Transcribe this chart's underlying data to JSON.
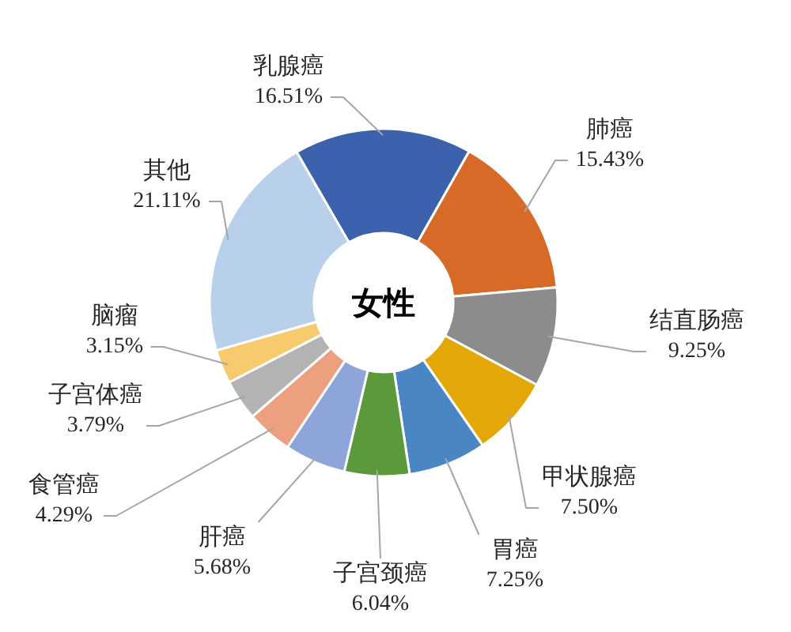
{
  "chart_data": {
    "type": "donut",
    "title": "女性",
    "categories": [
      "乳腺癌",
      "肺癌",
      "结直肠癌",
      "甲状腺癌",
      "胃癌",
      "子宫颈癌",
      "肝癌",
      "食管癌",
      "子宫体癌",
      "脑瘤",
      "其他"
    ],
    "values": [
      16.51,
      15.43,
      9.25,
      7.5,
      7.25,
      6.04,
      5.68,
      4.29,
      3.79,
      3.15,
      21.11
    ],
    "colors": [
      "#3d62ad",
      "#d86a28",
      "#8c8c8c",
      "#e3a808",
      "#4a85c4",
      "#5a9a3c",
      "#8ea5da",
      "#eda07f",
      "#b3b3b3",
      "#f8ca6e",
      "#b9d0ea"
    ],
    "value_labels": [
      "16.51%",
      "15.43%",
      "9.25%",
      "7.50%",
      "7.25%",
      "6.04%",
      "5.68%",
      "4.29%",
      "3.79%",
      "3.15%",
      "21.11%"
    ]
  }
}
